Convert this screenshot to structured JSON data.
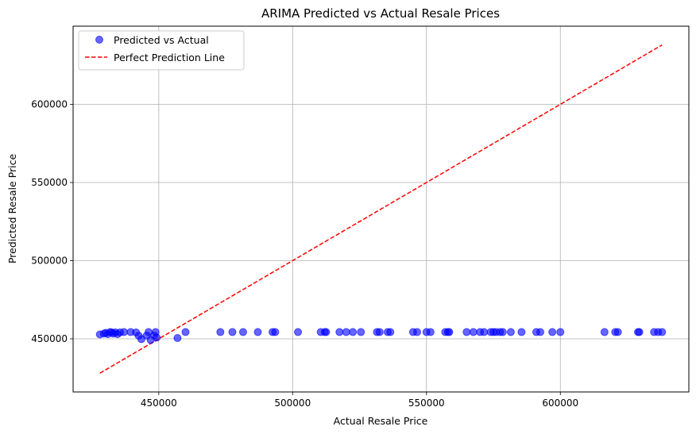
{
  "chart_data": {
    "type": "scatter",
    "title": "ARIMA Predicted vs Actual Resale Prices",
    "xlabel": "Actual Resale Price",
    "ylabel": "Predicted Resale Price",
    "xlim": [
      418000,
      648000
    ],
    "ylim": [
      416000,
      650000
    ],
    "xticks": [
      450000,
      500000,
      550000,
      600000
    ],
    "yticks": [
      450000,
      500000,
      550000,
      600000
    ],
    "grid": true,
    "legend_position": "top-left",
    "series": [
      {
        "name": "Predicted vs Actual",
        "kind": "scatter",
        "color": "#0000ff",
        "points": [
          [
            428000,
            452800
          ],
          [
            429500,
            453300
          ],
          [
            430200,
            453800
          ],
          [
            431000,
            453000
          ],
          [
            431800,
            454300
          ],
          [
            432500,
            454100
          ],
          [
            433000,
            453300
          ],
          [
            433800,
            454100
          ],
          [
            434600,
            453000
          ],
          [
            435500,
            454100
          ],
          [
            437000,
            454300
          ],
          [
            439500,
            454300
          ],
          [
            441500,
            454100
          ],
          [
            442500,
            452000
          ],
          [
            443500,
            449800
          ],
          [
            445500,
            452100
          ],
          [
            446200,
            454300
          ],
          [
            447000,
            449200
          ],
          [
            448300,
            452100
          ],
          [
            448800,
            454300
          ],
          [
            449200,
            450800
          ],
          [
            457000,
            450500
          ],
          [
            460000,
            454300
          ],
          [
            473000,
            454300
          ],
          [
            477500,
            454300
          ],
          [
            481500,
            454300
          ],
          [
            487000,
            454300
          ],
          [
            492500,
            454300
          ],
          [
            493500,
            454300
          ],
          [
            502000,
            454300
          ],
          [
            510500,
            454300
          ],
          [
            512000,
            454300
          ],
          [
            512500,
            454300
          ],
          [
            517500,
            454300
          ],
          [
            520000,
            454300
          ],
          [
            522500,
            454300
          ],
          [
            525500,
            454300
          ],
          [
            531500,
            454300
          ],
          [
            532500,
            454300
          ],
          [
            535500,
            454300
          ],
          [
            536500,
            454300
          ],
          [
            545000,
            454300
          ],
          [
            546500,
            454300
          ],
          [
            550000,
            454300
          ],
          [
            551500,
            454300
          ],
          [
            557000,
            454300
          ],
          [
            558000,
            454300
          ],
          [
            558500,
            454300
          ],
          [
            565000,
            454300
          ],
          [
            567500,
            454300
          ],
          [
            570000,
            454300
          ],
          [
            571500,
            454300
          ],
          [
            574000,
            454300
          ],
          [
            575000,
            454300
          ],
          [
            576000,
            454300
          ],
          [
            577500,
            454300
          ],
          [
            578500,
            454300
          ],
          [
            581500,
            454300
          ],
          [
            585500,
            454300
          ],
          [
            591000,
            454300
          ],
          [
            592500,
            454300
          ],
          [
            597000,
            454300
          ],
          [
            600000,
            454300
          ],
          [
            616500,
            454300
          ],
          [
            620500,
            454300
          ],
          [
            621500,
            454300
          ],
          [
            629000,
            454300
          ],
          [
            629500,
            454300
          ],
          [
            635000,
            454300
          ],
          [
            636500,
            454300
          ],
          [
            638000,
            454300
          ]
        ]
      },
      {
        "name": "Perfect Prediction Line",
        "kind": "line",
        "style": "dashed",
        "color": "#ff0000",
        "points": [
          [
            428000,
            428000
          ],
          [
            638000,
            638000
          ]
        ]
      }
    ]
  }
}
